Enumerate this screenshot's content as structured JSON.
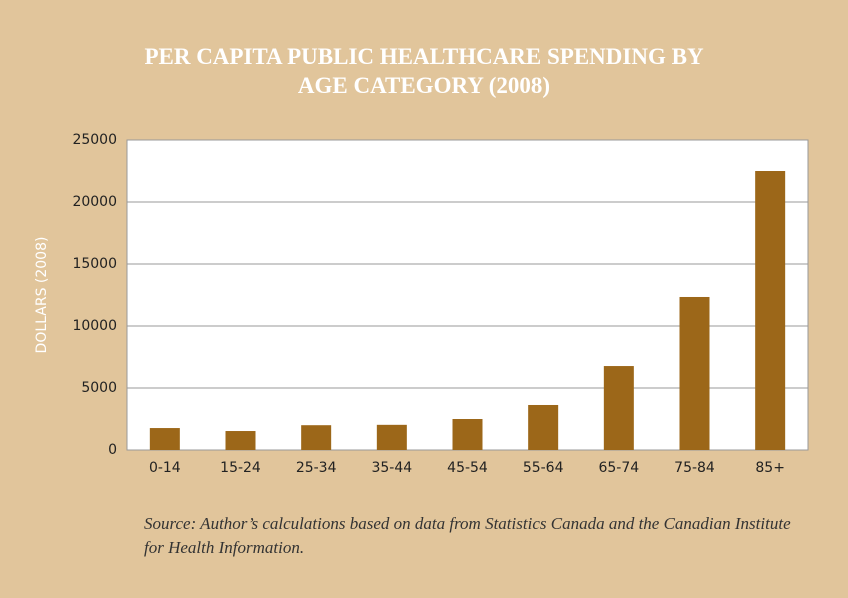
{
  "chart_data": {
    "type": "bar",
    "title": "PER CAPITA PUBLIC HEALTHCARE SPENDING BY AGE CATEGORY (2008)",
    "y_label": "DOLLARS (2008)",
    "note": "Source: Author’s calculations based on data from Statistics Canada and the Canadian Institute for Health Information.",
    "categories": [
      "0-14",
      "15-24",
      "25-34",
      "35-44",
      "45-54",
      "55-64",
      "65-74",
      "75-84",
      "85+"
    ],
    "values": [
      1770,
      1530,
      2000,
      2030,
      2500,
      3630,
      6770,
      12340,
      22500
    ],
    "color": "#9c6719",
    "ylim": [
      0,
      25000
    ],
    "yticks": [
      0,
      5000,
      10000,
      15000,
      20000,
      25000
    ],
    "grid": true
  }
}
